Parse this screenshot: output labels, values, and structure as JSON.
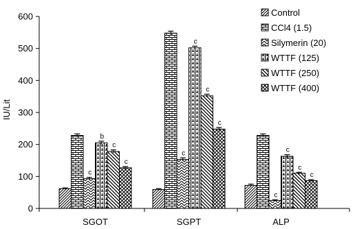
{
  "chart_data": {
    "type": "bar",
    "title": "",
    "xlabel": "",
    "ylabel": "IU/Lit",
    "ylim": [
      0,
      600
    ],
    "yticks": [
      "0",
      "100",
      "200",
      "300",
      "400",
      "500",
      "600"
    ],
    "categories": [
      "SGOT",
      "SGPT",
      "ALP"
    ],
    "legend_position": "top-right",
    "grid": false,
    "series": [
      {
        "name": "Control",
        "pattern": "diag-right",
        "values": [
          62,
          59,
          72
        ],
        "errors": [
          2,
          3,
          4
        ],
        "labels": [
          "",
          "",
          ""
        ]
      },
      {
        "name": "CCl4 (1.5)",
        "pattern": "brick",
        "values": [
          228,
          548,
          228
        ],
        "errors": [
          5,
          6,
          5
        ],
        "labels": [
          "",
          "",
          ""
        ]
      },
      {
        "name": "Silymerin (20)",
        "pattern": "zigzag",
        "values": [
          93,
          153,
          25
        ],
        "errors": [
          4,
          5,
          2
        ],
        "labels": [
          "c",
          "c",
          "c"
        ]
      },
      {
        "name": "WTTF (125)",
        "pattern": "vert-weave",
        "values": [
          205,
          502,
          163
        ],
        "errors": [
          5,
          5,
          5
        ],
        "labels": [
          "b",
          "c",
          "c"
        ]
      },
      {
        "name": "WTTF  (250)",
        "pattern": "diag-left",
        "values": [
          178,
          352,
          110
        ],
        "errors": [
          5,
          5,
          3
        ],
        "labels": [
          "c",
          "c",
          "c"
        ]
      },
      {
        "name": "WTTF (400)",
        "pattern": "cross",
        "values": [
          127,
          248,
          87
        ],
        "errors": [
          4,
          5,
          3
        ],
        "labels": [
          "c",
          "c",
          "c"
        ]
      }
    ]
  }
}
